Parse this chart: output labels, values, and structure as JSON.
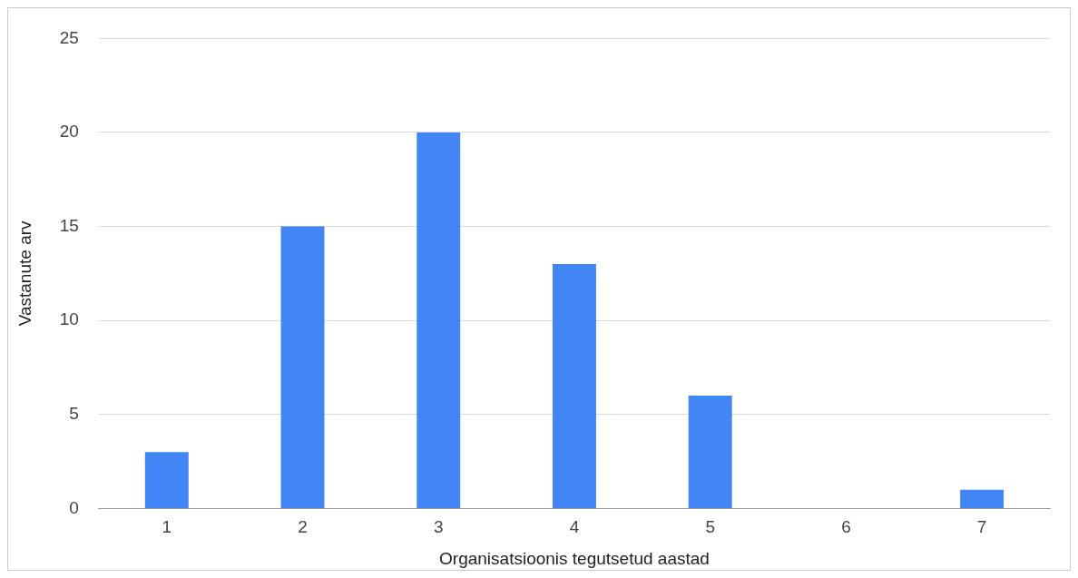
{
  "chart_data": {
    "type": "bar",
    "xlabel": "Organisatsioonis tegutsetud aastad",
    "ylabel": "Vastanute arv",
    "categories": [
      "1",
      "2",
      "3",
      "4",
      "5",
      "6",
      "7"
    ],
    "values": [
      3,
      15,
      20,
      13,
      6,
      0,
      1
    ],
    "color": "#4285f4",
    "ylim": [
      0,
      25
    ],
    "yticks": [
      0,
      5,
      10,
      15,
      20,
      25
    ],
    "grid": "y",
    "legend": false
  }
}
